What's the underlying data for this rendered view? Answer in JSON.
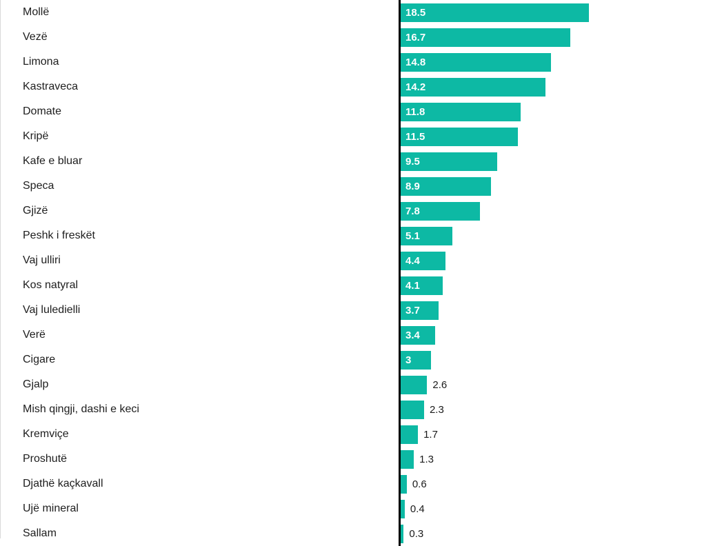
{
  "chart_data": {
    "type": "bar",
    "orientation": "horizontal",
    "title": "",
    "xlabel": "",
    "ylabel": "",
    "categories": [
      "Mollë",
      "Vezë",
      "Limona",
      "Kastraveca",
      "Domate",
      "Kripë",
      "Kafe e bluar",
      "Speca",
      "Gjizë",
      "Peshk i freskët",
      "Vaj ulliri",
      "Kos natyral",
      "Vaj luledielli",
      "Verë",
      "Cigare",
      "Gjalp",
      "Mish qingji, dashi e keci",
      "Kremviçe",
      "Proshutë",
      "Djathë kaçkavall",
      "Ujë mineral",
      "Sallam"
    ],
    "values": [
      18.5,
      16.7,
      14.8,
      14.2,
      11.8,
      11.5,
      9.5,
      8.9,
      7.8,
      5.1,
      4.4,
      4.1,
      3.7,
      3.4,
      3,
      2.6,
      2.3,
      1.7,
      1.3,
      0.6,
      0.4,
      0.3
    ],
    "value_labels": true,
    "bar_color": "#0db9a4",
    "axis_color": "#000000",
    "xlim": [
      0,
      31.5
    ],
    "grid": false,
    "legend": false
  }
}
